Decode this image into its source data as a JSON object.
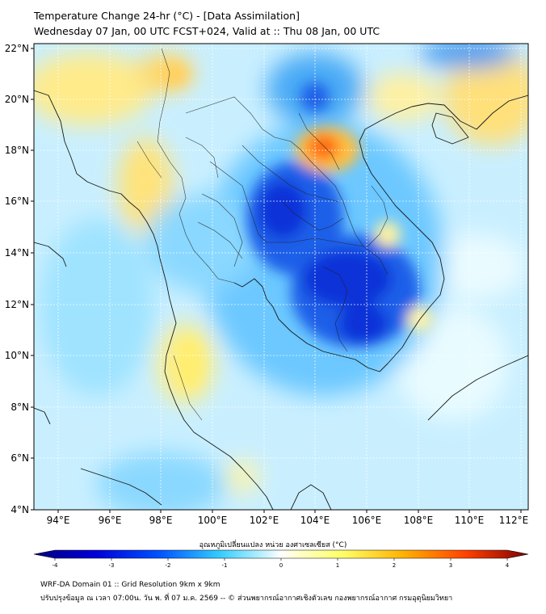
{
  "header": {
    "title_line1": "Temperature Change 24-hr (°C) - [Data Assimilation]",
    "title_line2": "Wednesday 07 Jan, 00 UTC FCST+024, Valid at :: Thu 08 Jan, 00 UTC"
  },
  "map": {
    "lat_ticks": [
      "22°N",
      "20°N",
      "18°N",
      "16°N",
      "14°N",
      "12°N",
      "10°N",
      "8°N",
      "6°N",
      "4°N"
    ],
    "lon_ticks": [
      "94°E",
      "96°E",
      "98°E",
      "100°E",
      "102°E",
      "104°E",
      "106°E",
      "108°E",
      "110°E",
      "112°E"
    ]
  },
  "colorbar": {
    "label": "อุณหภูมิเปลี่ยนแปลง หน่วย องศาเซลเซียส (°C)",
    "ticks": [
      "-4",
      "-3",
      "-2",
      "-1",
      "0",
      "1",
      "2",
      "3",
      "4"
    ],
    "colors": {
      "neg4": "#00007f",
      "neg3": "#0000d8",
      "neg2": "#0080ff",
      "neg1": "#33ccff",
      "zero": "#ffffff",
      "pos1": "#ffff66",
      "pos2": "#ffb000",
      "pos3": "#ff4000",
      "pos4": "#800000"
    }
  },
  "footer": {
    "line1": "WRF-DA Domain 01 :: Grid Resolution 9km x 9km",
    "line2": "ปรับปรุงข้อมูล ณ เวลา 07:00น. วัน พ. ที่ 07 ม.ค. 2569 -- © ส่วนพยากรณ์อากาศเชิงตัวเลข กองพยากรณ์อากาศ กรมอุตุนิยมวิทยา"
  }
}
